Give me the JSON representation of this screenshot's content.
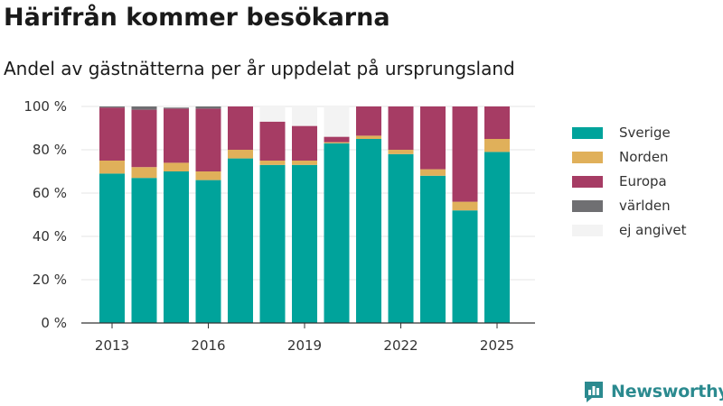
{
  "header": {
    "title": "Härifrån kommer besökarna",
    "subtitle": "Andel av gästnätterna per år uppdelat på ursprungsland"
  },
  "brand": {
    "name": "Newsworthy",
    "color": "#2b8a8f",
    "logo_icon": "bar-chart-speech-bubble-icon"
  },
  "chart_data": {
    "type": "bar",
    "stacked": true,
    "x": [
      2013,
      2014,
      2015,
      2016,
      2017,
      2018,
      2019,
      2020,
      2021,
      2022,
      2023,
      2024,
      2025
    ],
    "xticks": [
      "2013",
      "2016",
      "2019",
      "2022",
      "2025"
    ],
    "yticks": [
      "0 %",
      "20 %",
      "40 %",
      "60 %",
      "80 %",
      "100 %"
    ],
    "ylim": [
      0,
      100
    ],
    "grid": true,
    "legend_position": "right",
    "series": [
      {
        "name": "Sverige",
        "color": "#00a39b",
        "values": [
          69,
          67,
          70,
          66,
          76,
          73,
          73,
          83,
          85,
          78,
          68,
          52,
          79
        ]
      },
      {
        "name": "Norden",
        "color": "#e0b05a",
        "values": [
          6,
          5,
          4,
          4,
          4,
          2,
          2,
          0.5,
          1.5,
          2,
          3,
          4,
          6
        ]
      },
      {
        "name": "Europa",
        "color": "#a63c64",
        "values": [
          24.5,
          26.5,
          25,
          29,
          20,
          18,
          16,
          2.5,
          13.5,
          20,
          29,
          44,
          15
        ]
      },
      {
        "name": "världen",
        "color": "#6f6f72",
        "values": [
          0.5,
          1.5,
          0.5,
          1,
          0,
          0,
          0,
          0,
          0,
          0,
          0,
          0,
          0
        ]
      },
      {
        "name": "ej angivet",
        "color": "#f3f3f3",
        "values": [
          0,
          0,
          0.5,
          0,
          0,
          7,
          9,
          14,
          0,
          0,
          0,
          0,
          0
        ]
      }
    ]
  }
}
